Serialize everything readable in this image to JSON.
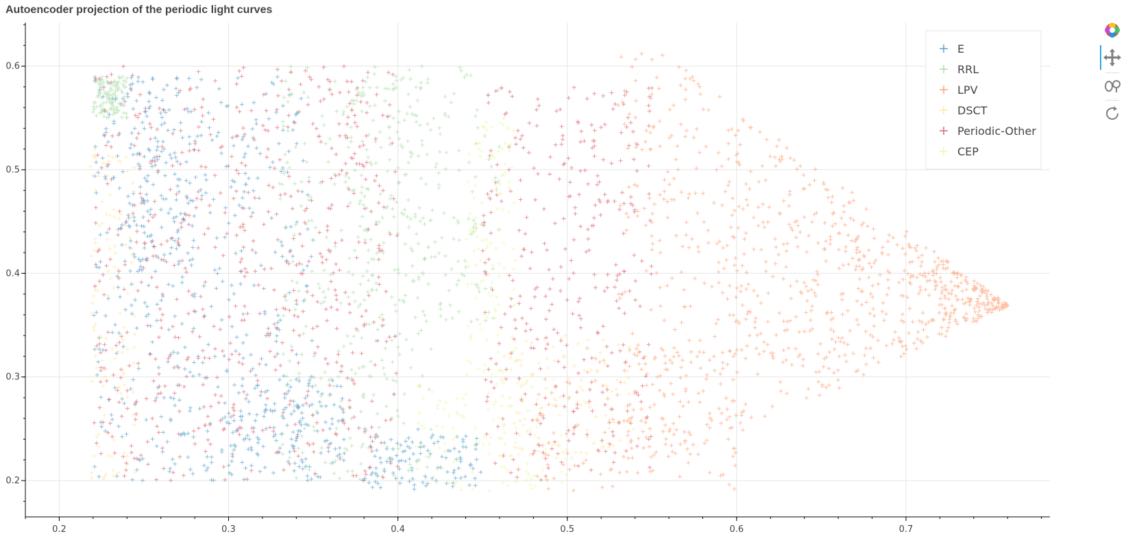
{
  "title": "Autoencoder projection of the periodic light curves",
  "toolbar": {
    "icons": [
      "bokeh-logo-icon",
      "pan-icon",
      "wheel-zoom-icon",
      "reset-icon"
    ],
    "active_color": "#26aae1"
  },
  "chart_data": {
    "type": "scatter",
    "title": "Autoencoder projection of the periodic light curves",
    "xlabel": "",
    "ylabel": "",
    "xlim": [
      0.18,
      0.785
    ],
    "ylim": [
      0.165,
      0.642
    ],
    "x_ticks": [
      "0.2",
      "0.3",
      "0.4",
      "0.5",
      "0.6",
      "0.7"
    ],
    "y_ticks": [
      "0.2",
      "0.3",
      "0.4",
      "0.5",
      "0.6"
    ],
    "x_tick_values": [
      0.2,
      0.3,
      0.4,
      0.5,
      0.6,
      0.7
    ],
    "y_tick_values": [
      0.2,
      0.3,
      0.4,
      0.5,
      0.6
    ],
    "grid": true,
    "legend_position": "top-right",
    "marker": "cross",
    "series": [
      {
        "name": "E",
        "color": "#3288bd",
        "regions": [
          {
            "x_range": [
              0.22,
              0.35
            ],
            "y_range": [
              0.2,
              0.59
            ]
          },
          {
            "x_range": [
              0.24,
              0.28
            ],
            "y_range": [
              0.4,
              0.59
            ]
          },
          {
            "x_range": [
              0.3,
              0.37
            ],
            "y_range": [
              0.2,
              0.3
            ]
          },
          {
            "x_range": [
              0.38,
              0.45
            ],
            "y_range": [
              0.19,
              0.25
            ]
          }
        ]
      },
      {
        "name": "RRL",
        "color": "#99d594",
        "regions": [
          {
            "x_range": [
              0.37,
              0.46
            ],
            "y_range": [
              0.35,
              0.6
            ]
          },
          {
            "x_range": [
              0.33,
              0.42
            ],
            "y_range": [
              0.2,
              0.6
            ]
          },
          {
            "x_range": [
              0.22,
              0.24
            ],
            "y_range": [
              0.55,
              0.59
            ]
          }
        ]
      },
      {
        "name": "LPV",
        "color": "#fc8d59",
        "regions": [
          {
            "x_range": [
              0.53,
              0.76
            ],
            "y_range": [
              0.2,
              0.62
            ]
          },
          {
            "x_range": [
              0.48,
              0.6
            ],
            "y_range": [
              0.19,
              0.33
            ]
          }
        ]
      },
      {
        "name": "DSCT",
        "color": "#fee08b",
        "regions": [
          {
            "x_range": [
              0.218,
              0.245
            ],
            "y_range": [
              0.2,
              0.52
            ]
          },
          {
            "x_range": [
              0.46,
              0.54
            ],
            "y_range": [
              0.22,
              0.34
            ]
          }
        ]
      },
      {
        "name": "Periodic-Other",
        "color": "#d53e4f",
        "regions": [
          {
            "x_range": [
              0.45,
              0.55
            ],
            "y_range": [
              0.2,
              0.58
            ]
          },
          {
            "x_range": [
              0.22,
              0.4
            ],
            "y_range": [
              0.2,
              0.6
            ]
          }
        ]
      },
      {
        "name": "CEP",
        "color": "#e6f598",
        "regions": [
          {
            "x_range": [
              0.41,
              0.5
            ],
            "y_range": [
              0.19,
              0.3
            ]
          },
          {
            "x_range": [
              0.44,
              0.47
            ],
            "y_range": [
              0.3,
              0.55
            ]
          }
        ]
      }
    ]
  }
}
